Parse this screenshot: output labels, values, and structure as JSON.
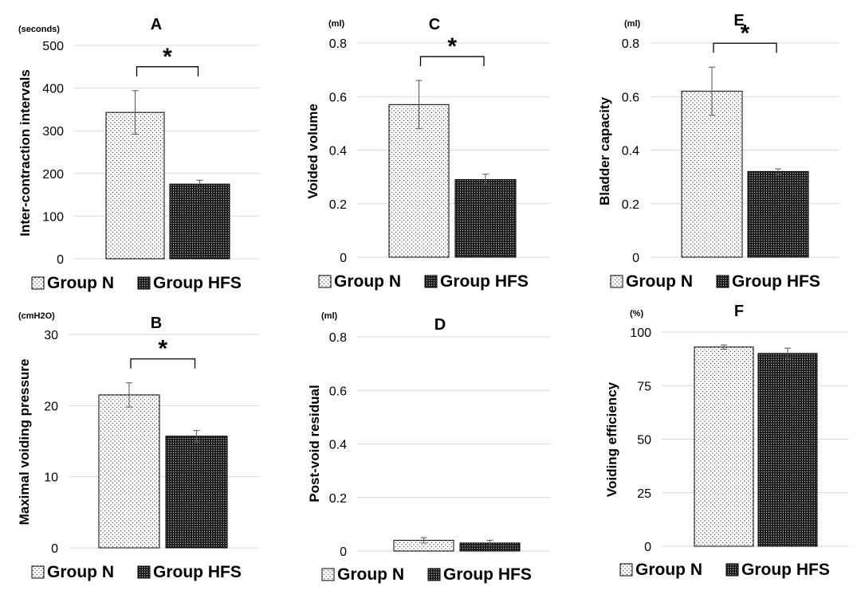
{
  "figure": {
    "legend": [
      "Group N",
      "Group HFS"
    ],
    "series_patterns": [
      "sparse-dots",
      "dense-dots"
    ]
  },
  "chart_data": [
    {
      "panel": "A",
      "type": "bar",
      "title": "A",
      "unit": "(seconds)",
      "ylabel": "Inter-contraction intervals",
      "categories": [
        "Group N",
        "Group HFS"
      ],
      "values": [
        343,
        175
      ],
      "errors": [
        51,
        9
      ],
      "ylim": [
        0,
        500
      ],
      "yticks": [
        0,
        100,
        200,
        300,
        400,
        500
      ],
      "ytick_labels": [
        "0",
        "100",
        "200",
        "300",
        "400",
        "500"
      ],
      "significance": "*",
      "grid": true
    },
    {
      "panel": "B",
      "type": "bar",
      "title": "B",
      "unit": "(cmH2O)",
      "ylabel": "Maximal voiding pressure",
      "categories": [
        "Group N",
        "Group HFS"
      ],
      "values": [
        21.5,
        15.7
      ],
      "errors": [
        1.7,
        0.8
      ],
      "ylim": [
        0,
        30
      ],
      "yticks": [
        0,
        10,
        20,
        30
      ],
      "ytick_labels": [
        "0",
        "10",
        "20",
        "30"
      ],
      "significance": "*",
      "grid": true
    },
    {
      "panel": "C",
      "type": "bar",
      "title": "C",
      "unit": "(ml)",
      "ylabel": "Voided volume",
      "categories": [
        "Group N",
        "Group HFS"
      ],
      "values": [
        0.57,
        0.29
      ],
      "errors": [
        0.09,
        0.02
      ],
      "ylim": [
        0,
        0.8
      ],
      "yticks": [
        0,
        0.2,
        0.4,
        0.6,
        0.8
      ],
      "ytick_labels": [
        "0",
        "0.2",
        "0.4",
        "0.6",
        "0.8"
      ],
      "significance": "*",
      "grid": true
    },
    {
      "panel": "D",
      "type": "bar",
      "title": "D",
      "unit": "(ml)",
      "ylabel": "Post-void residual",
      "categories": [
        "Group N",
        "Group HFS"
      ],
      "values": [
        0.04,
        0.03
      ],
      "errors": [
        0.01,
        0.01
      ],
      "ylim": [
        0,
        0.8
      ],
      "yticks": [
        0,
        0.2,
        0.4,
        0.6,
        0.8
      ],
      "ytick_labels": [
        "0",
        "0.2",
        "0.4",
        "0.6",
        "0.8"
      ],
      "significance": "",
      "grid": true
    },
    {
      "panel": "E",
      "type": "bar",
      "title": "E",
      "unit": "(ml)",
      "ylabel": "Bladder capacity",
      "categories": [
        "Group N",
        "Group HFS"
      ],
      "values": [
        0.62,
        0.32
      ],
      "errors": [
        0.09,
        0.01
      ],
      "ylim": [
        0,
        0.8
      ],
      "yticks": [
        0,
        0.2,
        0.4,
        0.6,
        0.8
      ],
      "ytick_labels": [
        "0",
        "0.2",
        "0.4",
        "0.6",
        "0.8"
      ],
      "significance": "*",
      "grid": true
    },
    {
      "panel": "F",
      "type": "bar",
      "title": "F",
      "unit": "(%)",
      "ylabel": "Voiding efficiency",
      "categories": [
        "Group N",
        "Group HFS"
      ],
      "values": [
        93,
        90
      ],
      "errors": [
        1,
        2.5
      ],
      "ylim": [
        0,
        100
      ],
      "yticks": [
        0,
        25,
        50,
        75,
        100
      ],
      "ytick_labels": [
        "0",
        "25",
        "50",
        "75",
        "100"
      ],
      "significance": "",
      "grid": true
    }
  ]
}
